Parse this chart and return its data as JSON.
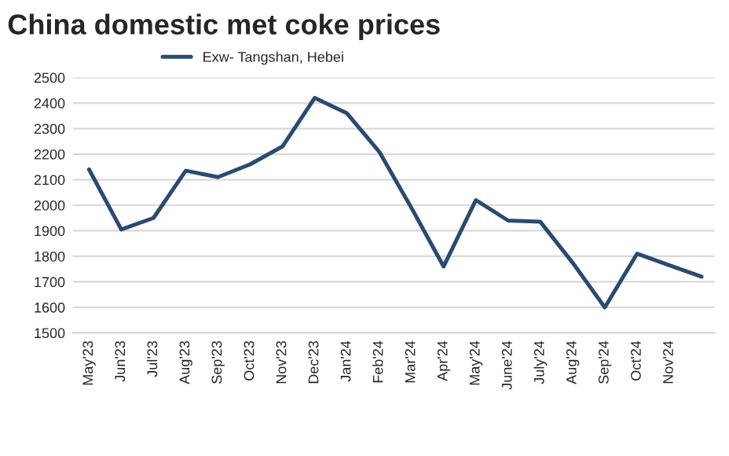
{
  "chart_data": {
    "type": "line",
    "title": "China domestic met coke prices",
    "categories": [
      "May'23",
      "Jun'23",
      "Jul'23",
      "Aug'23",
      "Sep'23",
      "Oct'23",
      "Nov'23",
      "Dec'23",
      "Jan'24",
      "Feb'24",
      "Mar'24",
      "Apr'24",
      "May'24",
      "June'24",
      "July'24",
      "Aug'24",
      "Sep'24",
      "Oct'24",
      "Nov'24",
      null
    ],
    "series": [
      {
        "name": "Exw- Tangshan, Hebei",
        "color": "#2b4a70",
        "values": [
          2140,
          1905,
          1950,
          2135,
          2110,
          2160,
          2230,
          2420,
          2360,
          2210,
          1990,
          1760,
          2020,
          1940,
          1935,
          1775,
          1600,
          1810,
          1765,
          1720
        ]
      }
    ],
    "ylim": [
      1500,
      2500
    ],
    "yticks": [
      1500,
      1600,
      1700,
      1800,
      1900,
      2000,
      2100,
      2200,
      2300,
      2400,
      2500
    ],
    "grid": "y",
    "legend": "top left"
  }
}
